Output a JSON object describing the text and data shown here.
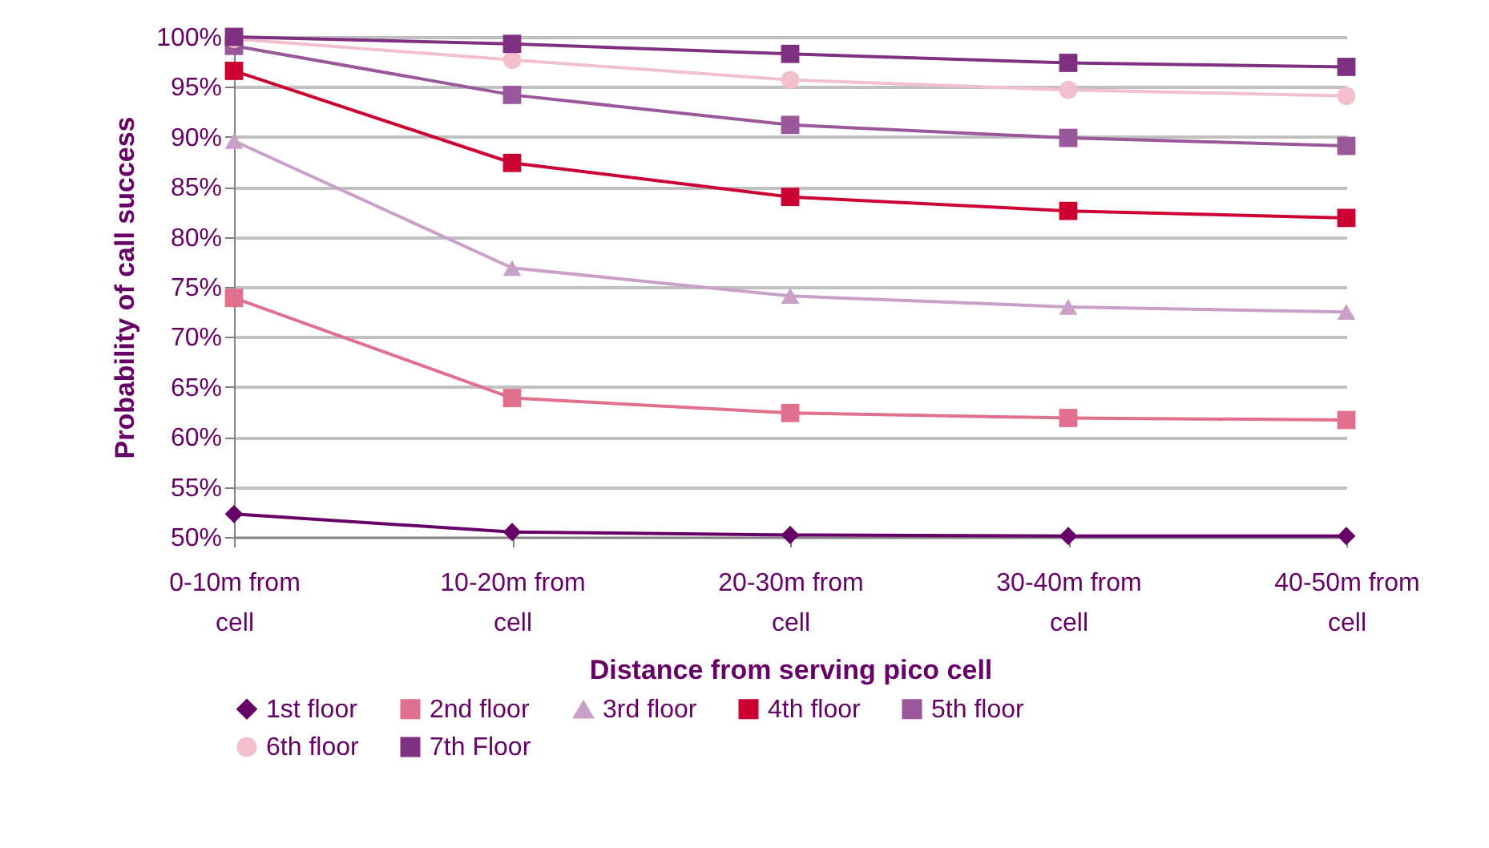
{
  "chart_data": {
    "type": "line",
    "xlabel": "Distance from serving pico cell",
    "ylabel": "Probability of call success",
    "categories": [
      "0-10m from cell",
      "10-20m from cell",
      "20-30m from cell",
      "30-40m from cell",
      "40-50m from cell"
    ],
    "series": [
      {
        "name": "1st floor",
        "color": "#660066",
        "marker": "diamond",
        "values": [
          52.3,
          50.5,
          50.2,
          50.1,
          50.1
        ]
      },
      {
        "name": "2nd floor",
        "color": "#e0708e",
        "marker": "square",
        "values": [
          73.9,
          63.9,
          62.4,
          61.9,
          61.7
        ]
      },
      {
        "name": "3rd floor",
        "color": "#c9a0c8",
        "marker": "triangle",
        "values": [
          89.6,
          76.9,
          74.1,
          73.0,
          72.5
        ]
      },
      {
        "name": "4th floor",
        "color": "#cc0033",
        "marker": "square",
        "values": [
          96.6,
          87.4,
          84.0,
          82.6,
          81.9
        ]
      },
      {
        "name": "5th floor",
        "color": "#9a579a",
        "marker": "square",
        "values": [
          99.1,
          94.2,
          91.2,
          89.9,
          89.1
        ]
      },
      {
        "name": "6th floor",
        "color": "#f2c0cc",
        "marker": "circle",
        "values": [
          99.8,
          97.7,
          95.7,
          94.7,
          94.1
        ]
      },
      {
        "name": "7th Floor",
        "color": "#803080",
        "marker": "square",
        "values": [
          100,
          99.3,
          98.3,
          97.4,
          97.0
        ]
      }
    ],
    "ylim": [
      50,
      100
    ],
    "yticks": [
      {
        "value": 50,
        "label": "50%"
      },
      {
        "value": 55,
        "label": "55%"
      },
      {
        "value": 60,
        "label": "60%"
      },
      {
        "value": 65,
        "label": "65%"
      },
      {
        "value": 70,
        "label": "70%"
      },
      {
        "value": 75,
        "label": "75%"
      },
      {
        "value": 80,
        "label": "80%"
      },
      {
        "value": 85,
        "label": "85%"
      },
      {
        "value": 90,
        "label": "90%"
      },
      {
        "value": 95,
        "label": "95%"
      },
      {
        "value": 100,
        "label": "100%"
      }
    ],
    "grid": "y",
    "legend": "bottom",
    "line_style": "solid"
  }
}
